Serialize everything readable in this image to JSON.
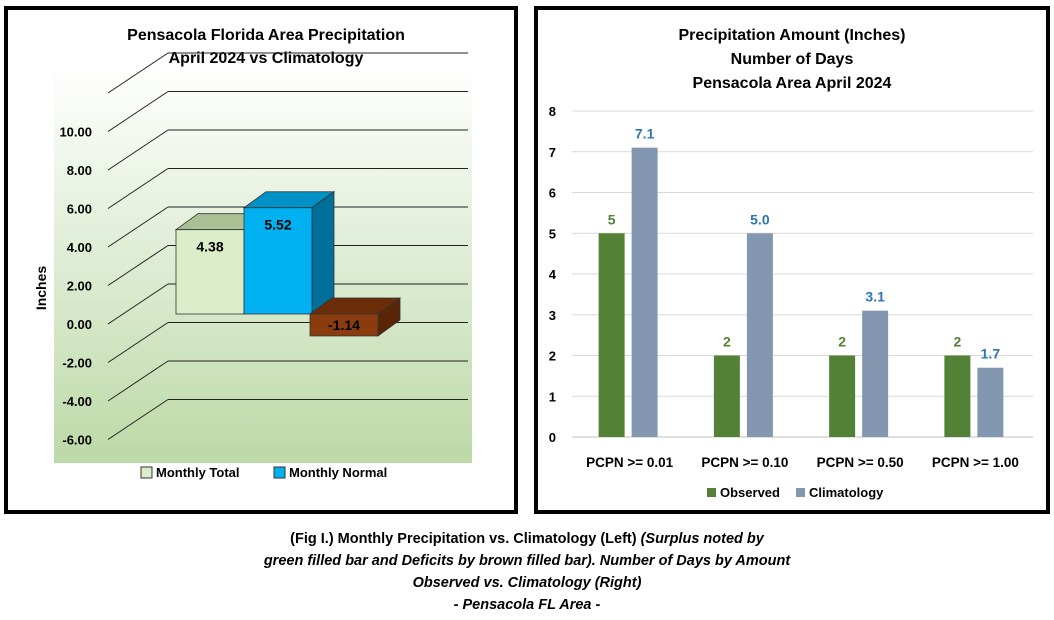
{
  "chart_data": [
    {
      "type": "bar",
      "title": "Pensacola Florida Area Precipitation",
      "subtitle": "April 2024 vs Climatology",
      "ylabel": "Inches",
      "ylim": [
        -6,
        12
      ],
      "yticks": [
        "-6.00",
        "-4.00",
        "-2.00",
        "0.00",
        "2.00",
        "4.00",
        "6.00",
        "8.00",
        "10.00"
      ],
      "series": [
        {
          "name": "Monthly Total",
          "values": [
            4.38
          ],
          "label": "4.38",
          "color": "#dbecc9"
        },
        {
          "name": "Monthly Normal",
          "values": [
            5.52
          ],
          "label": "5.52",
          "color": "#00b0f0"
        },
        {
          "name": "",
          "values": [
            -1.14
          ],
          "label": "-1.14",
          "color": "#8b3c0f"
        }
      ],
      "legend": [
        "Monthly Total",
        "Monthly Normal"
      ],
      "legend_position": "bottom",
      "grid": true,
      "three_d": true
    },
    {
      "type": "bar",
      "title": "Precipitation Amount (Inches)",
      "subtitle": "Number of Days",
      "subtitle2": "Pensacola Area April 2024",
      "categories": [
        "PCPN >= 0.01",
        "PCPN >= 0.10",
        "PCPN >= 0.50",
        "PCPN >= 1.00"
      ],
      "ylim": [
        0,
        8
      ],
      "yticks": [
        "0",
        "1",
        "2",
        "3",
        "4",
        "5",
        "6",
        "7",
        "8"
      ],
      "series": [
        {
          "name": "Observed",
          "values": [
            5,
            2,
            2,
            2
          ],
          "labels": [
            "5",
            "2",
            "2",
            "2"
          ],
          "color": "#538135"
        },
        {
          "name": "Climatology",
          "values": [
            7.1,
            5.0,
            3.1,
            1.7
          ],
          "labels": [
            "7.1",
            "5.0",
            "3.1",
            "1.7"
          ],
          "color": "#8497b0"
        }
      ],
      "label_colors": {
        "Observed": "#548235",
        "Climatology": "#2e75b6"
      },
      "legend_position": "bottom",
      "grid": true
    }
  ],
  "caption": {
    "line1_a": "(Fig I.) Monthly Precipitation vs. Climatology (Left) ",
    "line1_b": "(Surplus noted by",
    "line2": "green filled bar and Deficits by brown filled bar). Number of Days by Amount",
    "line3": "Observed vs. Climatology (Right)",
    "line4": "- Pensacola FL Area -"
  }
}
